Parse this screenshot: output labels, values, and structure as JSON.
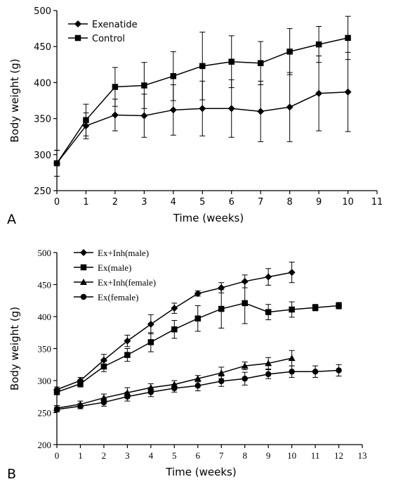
{
  "chart_data": [
    {
      "panel_label": "A",
      "type": "line",
      "xlabel": "Time (weeks)",
      "ylabel": "Body weight (g)",
      "xlim": [
        0,
        11
      ],
      "ylim": [
        250,
        500
      ],
      "x_ticks": [
        "0",
        "1",
        "2",
        "3",
        "4",
        "5",
        "6",
        "7",
        "8",
        "9",
        "10",
        "11"
      ],
      "y_ticks": [
        "250",
        "300",
        "350",
        "400",
        "450",
        "500"
      ],
      "grid": false,
      "legend_position": "top-left",
      "x": [
        0,
        1,
        2,
        3,
        4,
        5,
        6,
        7,
        8,
        9,
        10
      ],
      "series": [
        {
          "name": "Exenatide",
          "marker": "diamond",
          "values": [
            288,
            340,
            355,
            354,
            362,
            364,
            364,
            360,
            366,
            385,
            387
          ],
          "error": [
            18,
            18,
            22,
            30,
            35,
            38,
            40,
            42,
            48,
            52,
            55
          ]
        },
        {
          "name": "Control",
          "marker": "square",
          "values": [
            288,
            348,
            394,
            396,
            409,
            423,
            429,
            427,
            443,
            453,
            462
          ],
          "error": [
            18,
            22,
            27,
            32,
            34,
            47,
            36,
            30,
            32,
            25,
            30
          ]
        }
      ]
    },
    {
      "panel_label": "B",
      "type": "line",
      "xlabel": "Time (weeks)",
      "ylabel": "Body weight (g)",
      "xlim": [
        0,
        13
      ],
      "ylim": [
        200,
        500
      ],
      "x_ticks": [
        "0",
        "1",
        "2",
        "3",
        "4",
        "5",
        "6",
        "7",
        "8",
        "9",
        "10",
        "11",
        "12",
        "13"
      ],
      "y_ticks": [
        "200",
        "250",
        "300",
        "350",
        "400",
        "450",
        "500"
      ],
      "grid": false,
      "legend_position": "top-left",
      "series": [
        {
          "name": "Ex+Inh(male)",
          "marker": "diamond",
          "x": [
            0,
            1,
            2,
            3,
            4,
            5,
            6,
            7,
            8,
            9,
            10
          ],
          "values": [
            286,
            300,
            332,
            362,
            388,
            413,
            436,
            445,
            455,
            462,
            469
          ],
          "error": [
            4,
            5,
            9,
            9,
            15,
            8,
            4,
            8,
            10,
            13,
            16
          ]
        },
        {
          "name": "Ex(male)",
          "marker": "square",
          "x": [
            0,
            1,
            2,
            3,
            4,
            5,
            6,
            7,
            8,
            9,
            10,
            11,
            12
          ],
          "values": [
            282,
            295,
            322,
            340,
            360,
            380,
            397,
            412,
            421,
            407,
            411,
            414,
            417
          ],
          "error": [
            4,
            5,
            8,
            10,
            15,
            14,
            20,
            30,
            32,
            12,
            12,
            5,
            5
          ]
        },
        {
          "name": "Ex+Inh(female)",
          "marker": "triangle",
          "x": [
            0,
            1,
            2,
            3,
            4,
            5,
            6,
            7,
            8,
            9,
            10
          ],
          "values": [
            257,
            263,
            273,
            281,
            289,
            294,
            303,
            312,
            323,
            327,
            335
          ],
          "error": [
            4,
            5,
            6,
            8,
            6,
            6,
            5,
            9,
            6,
            9,
            12
          ]
        },
        {
          "name": "Ex(female)",
          "marker": "circle",
          "x": [
            0,
            1,
            2,
            3,
            4,
            5,
            6,
            7,
            8,
            9,
            10,
            11,
            12
          ],
          "values": [
            255,
            260,
            266,
            275,
            282,
            288,
            292,
            299,
            303,
            310,
            314,
            314,
            316
          ],
          "error": [
            4,
            4,
            6,
            7,
            7,
            6,
            8,
            8,
            10,
            7,
            9,
            9,
            9
          ]
        }
      ]
    }
  ]
}
